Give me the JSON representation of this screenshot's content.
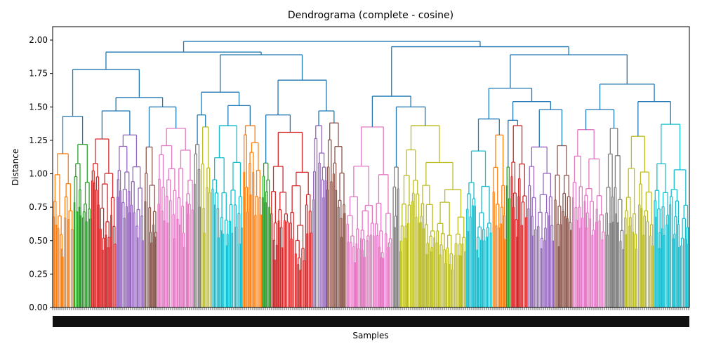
{
  "chart_data": {
    "type": "dendrogram",
    "title": "Dendrograma (complete - cosine)",
    "xlabel": "Samples",
    "ylabel": "Distance",
    "ylim": [
      0,
      2.1
    ],
    "y_ticks": [
      "0.00",
      "0.25",
      "0.50",
      "0.75",
      "1.00",
      "1.25",
      "1.50",
      "1.75",
      "2.00"
    ],
    "grid": false,
    "above_threshold_color": "#1f77b4",
    "cluster_colors": [
      "#ff7f0e",
      "#2ca02c",
      "#d62728",
      "#9467bd",
      "#8c564b",
      "#e377c2",
      "#7f7f7f",
      "#bcbd22",
      "#17becf"
    ],
    "top_merges": [
      {
        "name": "root",
        "height": 1.99
      },
      {
        "name": "left-main",
        "height": 1.91
      },
      {
        "name": "right-main",
        "height": 1.95
      },
      {
        "name": "left-a",
        "height": 1.78
      },
      {
        "name": "left-b",
        "height": 1.89
      },
      {
        "name": "right-a",
        "height": 1.58
      },
      {
        "name": "right-b",
        "height": 1.89
      },
      {
        "name": "right-b1",
        "height": 1.64
      },
      {
        "name": "right-b2",
        "height": 1.67
      }
    ]
  }
}
